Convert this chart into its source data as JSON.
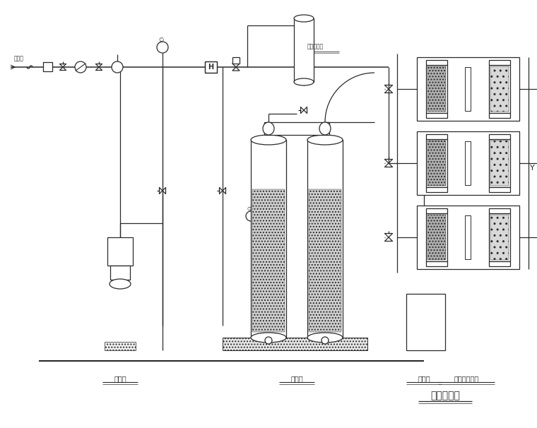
{
  "title": "工艺流程图",
  "bg_color": "#ffffff",
  "lc": "#2a2a2a",
  "labels": {
    "inlet": "自来水",
    "pump1": "加压泵",
    "pump2": "软水泵",
    "buffer": "缓缸箱",
    "filter3": "卡里澳净化器",
    "prefilter": "保安过滤器"
  },
  "figsize": [
    7.6,
    6.06
  ],
  "dpi": 100
}
